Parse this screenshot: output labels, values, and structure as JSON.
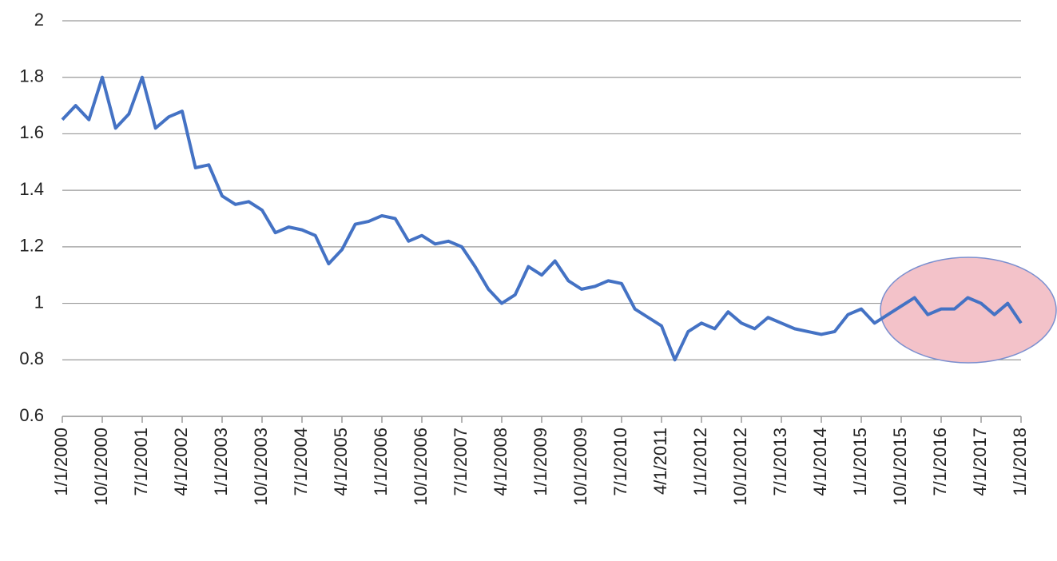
{
  "chart_data": {
    "type": "line",
    "categories": [
      "1/1/2000",
      null,
      null,
      "10/1/2000",
      null,
      null,
      "7/1/2001",
      null,
      null,
      "4/1/2002",
      null,
      null,
      "1/1/2003",
      null,
      null,
      "10/1/2003",
      null,
      null,
      "7/1/2004",
      null,
      null,
      "4/1/2005",
      null,
      null,
      "1/1/2006",
      null,
      null,
      "10/1/2006",
      null,
      null,
      "7/1/2007",
      null,
      null,
      "4/1/2008",
      null,
      null,
      "1/1/2009",
      null,
      null,
      "10/1/2009",
      null,
      null,
      "7/1/2010",
      null,
      null,
      "4/1/2011",
      null,
      null,
      "1/1/2012",
      null,
      null,
      "10/1/2012",
      null,
      null,
      "7/1/2013",
      null,
      null,
      "4/1/2014",
      null,
      null,
      "1/1/2015",
      null,
      null,
      "10/1/2015",
      null,
      null,
      "7/1/2016",
      null,
      null,
      "4/1/2017",
      null,
      null,
      "1/1/2018"
    ],
    "values": [
      1.65,
      1.7,
      1.65,
      1.8,
      1.62,
      1.67,
      1.8,
      1.62,
      1.66,
      1.68,
      1.48,
      1.49,
      1.38,
      1.35,
      1.36,
      1.33,
      1.25,
      1.27,
      1.26,
      1.24,
      1.14,
      1.19,
      1.28,
      1.29,
      1.31,
      1.3,
      1.22,
      1.24,
      1.21,
      1.22,
      1.2,
      1.13,
      1.05,
      1.0,
      1.03,
      1.13,
      1.1,
      1.15,
      1.08,
      1.05,
      1.06,
      1.08,
      1.07,
      0.98,
      0.95,
      0.92,
      0.8,
      0.9,
      0.93,
      0.91,
      0.97,
      0.93,
      0.91,
      0.95,
      0.93,
      0.91,
      0.9,
      0.89,
      0.9,
      0.96,
      0.98,
      0.93,
      0.96,
      0.99,
      1.02,
      0.96,
      0.98,
      0.98,
      1.02,
      1.0,
      0.96,
      1.0,
      0.93
    ],
    "color": "#4472c4",
    "ylim": [
      0.6,
      2
    ],
    "yticks": [
      0.6,
      0.8,
      1,
      1.2,
      1.4,
      1.6,
      1.8,
      2
    ],
    "grid": true
  }
}
